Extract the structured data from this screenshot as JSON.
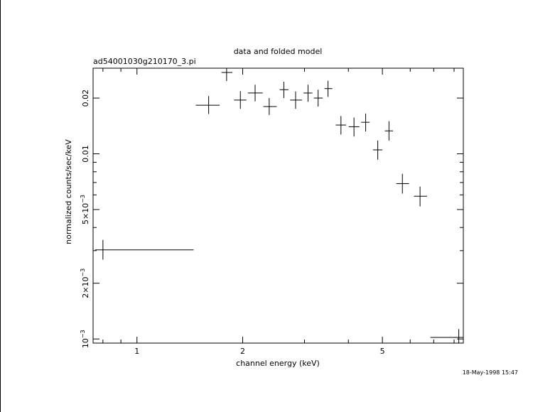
{
  "window": {
    "left_border_color": "#000000"
  },
  "chart_data": {
    "type": "scatter",
    "title": "data and folded model",
    "subtitle": "ad54001030g210170_3.pi",
    "xlabel": "channel energy (keV)",
    "ylabel": "normalized counts/sec/keV",
    "timestamp": "18-May-1998 15:47",
    "x_scale": "log",
    "y_scale": "log",
    "xlim": [
      0.75,
      8.5
    ],
    "ylim": [
      0.00095,
      0.029
    ],
    "x_ticks": [
      {
        "value": 1,
        "label": "1"
      },
      {
        "value": 2,
        "label": "2"
      },
      {
        "value": 5,
        "label": "5"
      }
    ],
    "y_ticks": [
      {
        "value": 0.001,
        "label": "10",
        "exp": "−3"
      },
      {
        "value": 0.002,
        "label": "2×10",
        "exp": "−3"
      },
      {
        "value": 0.005,
        "label": "5×10",
        "exp": "−3"
      },
      {
        "value": 0.01,
        "label": "0.01",
        "exp": ""
      },
      {
        "value": 0.02,
        "label": "0.02",
        "exp": ""
      }
    ],
    "grid": false,
    "series": [
      {
        "points": [
          {
            "x": 0.8,
            "xlo": 0.76,
            "xhi": 1.45,
            "y": 0.00303,
            "ylo": 0.00268,
            "yhi": 0.00343
          },
          {
            "x": 1.6,
            "xlo": 1.47,
            "xhi": 1.72,
            "y": 0.0183,
            "ylo": 0.0164,
            "yhi": 0.0205
          },
          {
            "x": 1.8,
            "xlo": 1.74,
            "xhi": 1.87,
            "y": 0.0275,
            "ylo": 0.0247,
            "yhi": 0.0305
          },
          {
            "x": 1.97,
            "xlo": 1.89,
            "xhi": 2.05,
            "y": 0.0195,
            "ylo": 0.0175,
            "yhi": 0.0218
          },
          {
            "x": 2.17,
            "xlo": 2.07,
            "xhi": 2.28,
            "y": 0.0213,
            "ylo": 0.0192,
            "yhi": 0.0236
          },
          {
            "x": 2.38,
            "xlo": 2.29,
            "xhi": 2.5,
            "y": 0.018,
            "ylo": 0.0162,
            "yhi": 0.02
          },
          {
            "x": 2.62,
            "xlo": 2.55,
            "xhi": 2.7,
            "y": 0.0222,
            "ylo": 0.02,
            "yhi": 0.0245
          },
          {
            "x": 2.83,
            "xlo": 2.73,
            "xhi": 2.95,
            "y": 0.0195,
            "ylo": 0.0175,
            "yhi": 0.0217
          },
          {
            "x": 3.07,
            "xlo": 2.98,
            "xhi": 3.16,
            "y": 0.0213,
            "ylo": 0.0191,
            "yhi": 0.0236
          },
          {
            "x": 3.28,
            "xlo": 3.19,
            "xhi": 3.38,
            "y": 0.02,
            "ylo": 0.018,
            "yhi": 0.0222
          },
          {
            "x": 3.5,
            "xlo": 3.42,
            "xhi": 3.6,
            "y": 0.0225,
            "ylo": 0.0203,
            "yhi": 0.0248
          },
          {
            "x": 3.81,
            "xlo": 3.68,
            "xhi": 3.94,
            "y": 0.0143,
            "ylo": 0.0127,
            "yhi": 0.016
          },
          {
            "x": 4.15,
            "xlo": 4.01,
            "xhi": 4.3,
            "y": 0.014,
            "ylo": 0.0124,
            "yhi": 0.0157
          },
          {
            "x": 4.48,
            "xlo": 4.35,
            "xhi": 4.6,
            "y": 0.0148,
            "ylo": 0.0132,
            "yhi": 0.0165
          },
          {
            "x": 4.85,
            "xlo": 4.7,
            "xhi": 5.0,
            "y": 0.0105,
            "ylo": 0.0093,
            "yhi": 0.0118
          },
          {
            "x": 5.22,
            "xlo": 5.08,
            "xhi": 5.36,
            "y": 0.0133,
            "ylo": 0.0118,
            "yhi": 0.015
          },
          {
            "x": 5.7,
            "xlo": 5.48,
            "xhi": 5.95,
            "y": 0.0069,
            "ylo": 0.0061,
            "yhi": 0.0078
          },
          {
            "x": 6.4,
            "xlo": 6.15,
            "xhi": 6.7,
            "y": 0.0059,
            "ylo": 0.0052,
            "yhi": 0.00665
          },
          {
            "x": 8.25,
            "xlo": 6.85,
            "xhi": 8.5,
            "y": 0.00102,
            "ylo": 0.00095,
            "yhi": 0.00113
          }
        ]
      }
    ]
  }
}
